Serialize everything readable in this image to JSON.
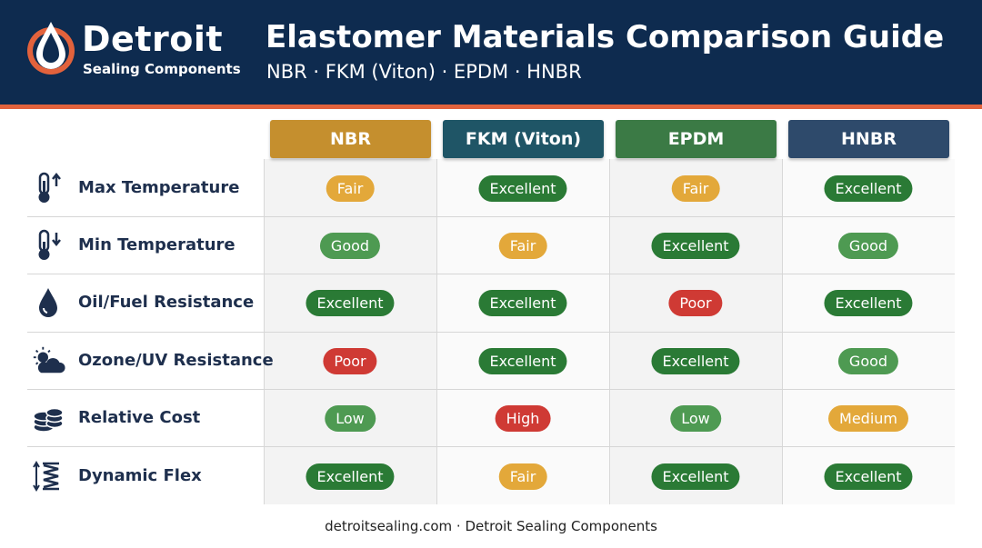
{
  "brand": {
    "name": "Detroit",
    "sub": "Sealing Components"
  },
  "header": {
    "title": "Elastomer Materials Comparison Guide",
    "subtitle": "NBR · FKM (Viton) · EPDM · HNBR"
  },
  "columns": [
    {
      "label": "NBR",
      "color": "#c58f2e"
    },
    {
      "label": "FKM (Viton)",
      "color": "#1f5566"
    },
    {
      "label": "EPDM",
      "color": "#3b7a45"
    },
    {
      "label": "HNBR",
      "color": "#2e4a6b"
    }
  ],
  "rows": [
    {
      "label": "Max Temperature",
      "icon": "thermometer-up-icon",
      "values": [
        "Fair",
        "Excellent",
        "Fair",
        "Excellent"
      ]
    },
    {
      "label": "Min Temperature",
      "icon": "thermometer-down-icon",
      "values": [
        "Good",
        "Fair",
        "Excellent",
        "Good"
      ]
    },
    {
      "label": "Oil/Fuel Resistance",
      "icon": "oil-drop-icon",
      "values": [
        "Excellent",
        "Excellent",
        "Poor",
        "Excellent"
      ]
    },
    {
      "label": "Ozone/UV Resistance",
      "icon": "sun-cloud-icon",
      "values": [
        "Poor",
        "Excellent",
        "Excellent",
        "Good"
      ]
    },
    {
      "label": "Relative Cost",
      "icon": "coins-icon",
      "values": [
        "Low",
        "High",
        "Low",
        "Medium"
      ]
    },
    {
      "label": "Dynamic Flex",
      "icon": "spring-icon",
      "values": [
        "Excellent",
        "Fair",
        "Excellent",
        "Excellent"
      ]
    }
  ],
  "rating_colors": {
    "Excellent": "#2a7a35",
    "Good": "#4e9a52",
    "Fair": "#e3a83a",
    "Poor": "#cf3a34",
    "Low": "#4e9a52",
    "Medium": "#e3a83a",
    "High": "#cf3a34"
  },
  "footer": "detroitsealing.com · Detroit Sealing Components"
}
